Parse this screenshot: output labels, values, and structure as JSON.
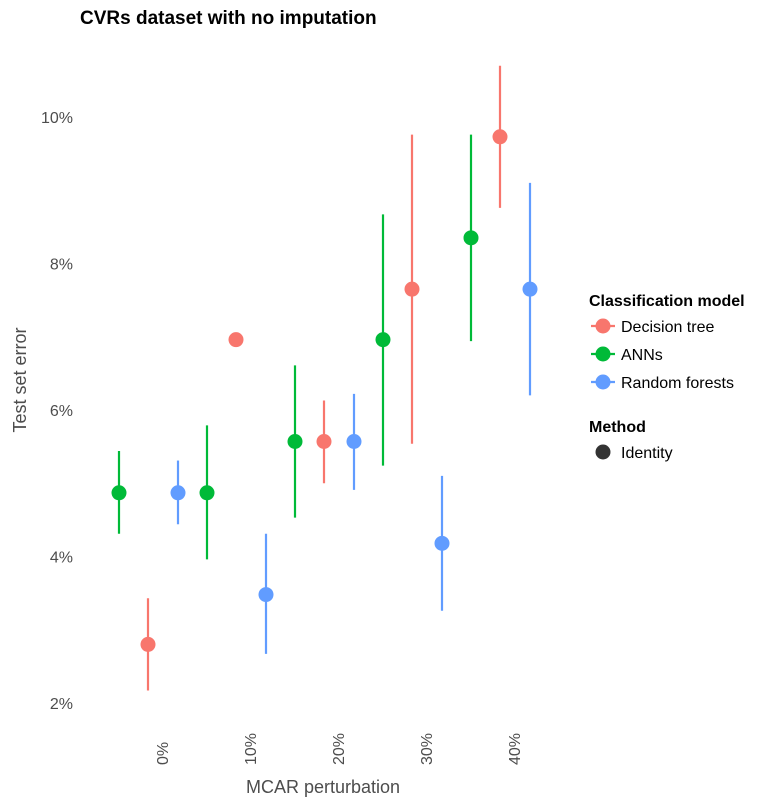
{
  "chart_data": {
    "type": "scatter",
    "title": "CVRs dataset with no imputation",
    "xlabel": "MCAR perturbation",
    "ylabel": "Test set error",
    "x_ticks": [
      "0%",
      "10%",
      "20%",
      "30%",
      "40%"
    ],
    "y_ticks": [
      "2%",
      "4%",
      "6%",
      "8%",
      "10%"
    ],
    "ylim": [
      1.9,
      10.75
    ],
    "grid": false,
    "legend_position": "right",
    "series": [
      {
        "name": "Decision tree",
        "color": "#F8766D",
        "points": [
          {
            "x": 0,
            "y": 2.8,
            "low": 2.17,
            "high": 3.43
          },
          {
            "x": 10,
            "y": 6.96,
            "low": null,
            "high": null
          },
          {
            "x": 20,
            "y": 5.57,
            "low": 5.0,
            "high": 6.13
          },
          {
            "x": 30,
            "y": 7.65,
            "low": 5.54,
            "high": 9.76
          },
          {
            "x": 40,
            "y": 9.73,
            "low": 8.76,
            "high": 10.7
          }
        ]
      },
      {
        "name": "ANNs",
        "color": "#00BA38",
        "points": [
          {
            "x": 0,
            "y": 4.87,
            "low": 4.31,
            "high": 5.44
          },
          {
            "x": 10,
            "y": 4.87,
            "low": 3.96,
            "high": 5.79
          },
          {
            "x": 20,
            "y": 5.57,
            "low": 4.53,
            "high": 6.61
          },
          {
            "x": 30,
            "y": 6.96,
            "low": 5.24,
            "high": 8.67
          },
          {
            "x": 40,
            "y": 8.35,
            "low": 6.94,
            "high": 9.76
          }
        ]
      },
      {
        "name": "Random forests",
        "color": "#619CFF",
        "points": [
          {
            "x": 0,
            "y": 4.87,
            "low": 4.44,
            "high": 5.31
          },
          {
            "x": 10,
            "y": 3.48,
            "low": 2.67,
            "high": 4.31
          },
          {
            "x": 20,
            "y": 5.57,
            "low": 4.91,
            "high": 6.22
          },
          {
            "x": 30,
            "y": 4.18,
            "low": 3.26,
            "high": 5.1
          },
          {
            "x": 40,
            "y": 7.65,
            "low": 6.2,
            "high": 9.1
          }
        ]
      }
    ],
    "legend": {
      "color_title": "Classification model",
      "color_items": [
        "Decision tree",
        "ANNs",
        "Random forests"
      ],
      "shape_title": "Method",
      "shape_items": [
        "Identity"
      ]
    }
  }
}
